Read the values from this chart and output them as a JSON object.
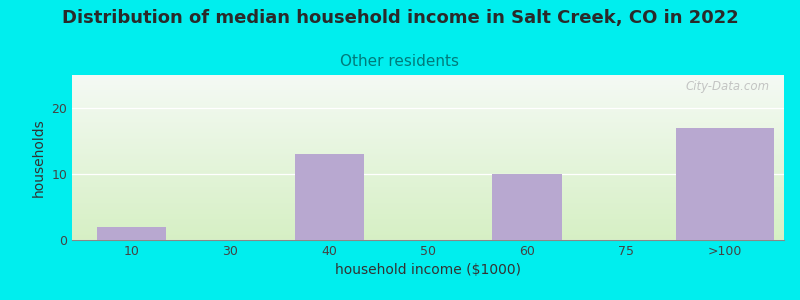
{
  "title": "Distribution of median household income in Salt Creek, CO in 2022",
  "subtitle": "Other residents",
  "xlabel": "household income ($1000)",
  "ylabel": "households",
  "bar_labels": [
    "10",
    "30",
    "40",
    "50",
    "60",
    "75",
    ">100"
  ],
  "bar_values": [
    2,
    0,
    13,
    0,
    10,
    0,
    17
  ],
  "bar_positions": [
    0,
    1,
    2,
    3,
    4,
    5,
    6
  ],
  "bar_color": "#b8a8d0",
  "bar_edgecolor": "#b8a8d0",
  "ylim": [
    0,
    25
  ],
  "yticks": [
    0,
    10,
    20
  ],
  "bg_color_top_right": "#f0f0f0",
  "bg_color_bottom_left": "#d8efc8",
  "outer_background": "#00eeee",
  "title_fontsize": 13,
  "title_color": "#2a2a2a",
  "subtitle_fontsize": 11,
  "subtitle_color": "#007b7b",
  "axis_label_fontsize": 10,
  "tick_fontsize": 9,
  "watermark_text": "City-Data.com"
}
